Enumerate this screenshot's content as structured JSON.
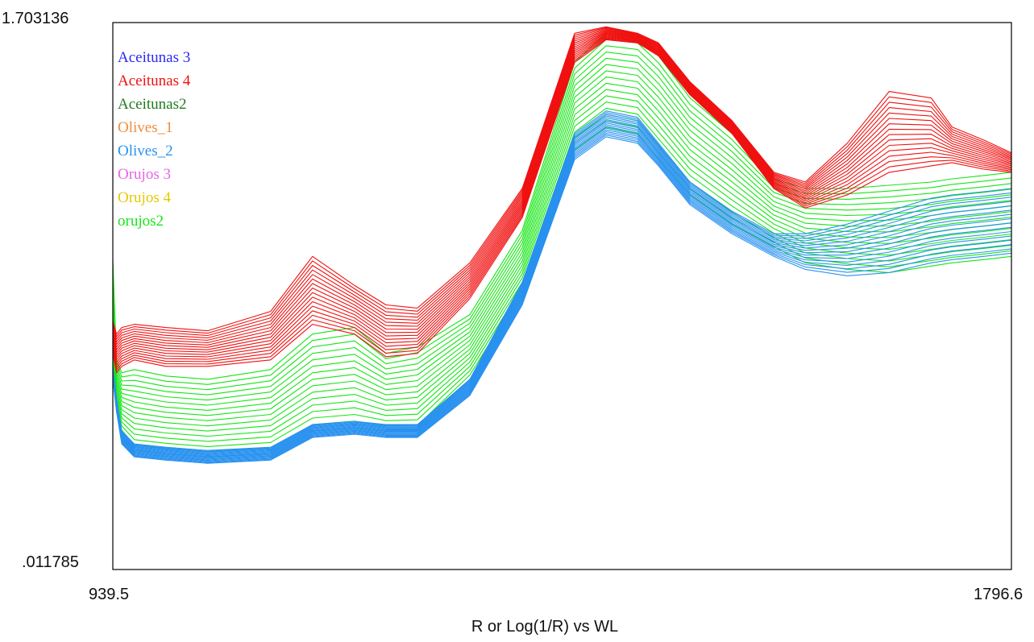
{
  "chart_data": {
    "type": "line",
    "title": "",
    "xlabel": "R or Log(1/R) vs WL",
    "ylabel": "",
    "xlim": [
      939.5,
      1796.6
    ],
    "ylim": [
      0.011785,
      1.703136
    ],
    "x_tick_labels": [
      "939.5",
      "1796.6"
    ],
    "y_tick_labels": [
      "1.703136",
      ".011785"
    ],
    "grid": false,
    "legend_position": "top-left",
    "legend": [
      {
        "name": "Aceitunas 3",
        "color": "#2a2af0"
      },
      {
        "name": "Aceitunas 4",
        "color": "#f01010"
      },
      {
        "name": "Aceitunas2",
        "color": "#1f7a1f"
      },
      {
        "name": "Olives_1",
        "color": "#f08c3c"
      },
      {
        "name": "Olives_2",
        "color": "#2891f0"
      },
      {
        "name": "Orujos 3",
        "color": "#e664e6"
      },
      {
        "name": "Orujos 4",
        "color": "#e6c800"
      },
      {
        "name": "orujos2",
        "color": "#14e614"
      }
    ],
    "series": [
      {
        "name": "orujos2",
        "color": "#14e614",
        "x": [
          939.5,
          943,
          948,
          960,
          990,
          1030,
          1090,
          1130,
          1170,
          1200,
          1230,
          1280,
          1330,
          1380,
          1410,
          1440,
          1460,
          1490,
          1530,
          1570,
          1600,
          1640,
          1680,
          1720,
          1740,
          1770,
          1796.6
        ],
        "lower": [
          0.64,
          0.5,
          0.43,
          0.38,
          0.37,
          0.36,
          0.37,
          0.44,
          0.45,
          0.44,
          0.44,
          0.6,
          0.86,
          1.31,
          1.38,
          1.36,
          1.28,
          1.17,
          1.08,
          1.01,
          0.96,
          0.94,
          0.93,
          0.95,
          0.96,
          0.97,
          0.98
        ],
        "upper": [
          0.97,
          0.66,
          0.62,
          0.63,
          0.61,
          0.6,
          0.63,
          0.74,
          0.76,
          0.68,
          0.7,
          0.8,
          1.06,
          1.58,
          1.67,
          1.66,
          1.6,
          1.47,
          1.36,
          1.22,
          1.19,
          1.19,
          1.2,
          1.21,
          1.22,
          1.23,
          1.24
        ]
      },
      {
        "name": "Aceitunas 4",
        "color": "#f01010",
        "x": [
          939.5,
          943,
          948,
          960,
          990,
          1030,
          1090,
          1130,
          1170,
          1200,
          1230,
          1280,
          1330,
          1380,
          1410,
          1440,
          1460,
          1490,
          1530,
          1570,
          1600,
          1640,
          1680,
          1720,
          1740,
          1770,
          1796.6
        ],
        "lower": [
          0.68,
          0.62,
          0.64,
          0.66,
          0.64,
          0.64,
          0.66,
          0.77,
          0.74,
          0.67,
          0.68,
          0.85,
          1.1,
          1.58,
          1.65,
          1.64,
          1.6,
          1.48,
          1.36,
          1.19,
          1.13,
          1.17,
          1.24,
          1.26,
          1.27,
          1.25,
          1.24
        ],
        "upper": [
          0.78,
          0.74,
          0.76,
          0.77,
          0.76,
          0.75,
          0.81,
          0.98,
          0.89,
          0.83,
          0.82,
          0.96,
          1.19,
          1.67,
          1.69,
          1.67,
          1.64,
          1.52,
          1.4,
          1.24,
          1.21,
          1.33,
          1.49,
          1.47,
          1.38,
          1.34,
          1.3
        ]
      },
      {
        "name": "Olives_2",
        "color": "#2891f0",
        "x": [
          939.5,
          943,
          948,
          960,
          990,
          1030,
          1090,
          1130,
          1170,
          1200,
          1230,
          1280,
          1330,
          1380,
          1410,
          1440,
          1460,
          1490,
          1530,
          1570,
          1600,
          1640,
          1680,
          1720,
          1740,
          1770,
          1796.6
        ],
        "lower": [
          0.6,
          0.5,
          0.4,
          0.36,
          0.35,
          0.34,
          0.35,
          0.42,
          0.43,
          0.42,
          0.42,
          0.55,
          0.83,
          1.28,
          1.35,
          1.33,
          1.26,
          1.14,
          1.05,
          0.98,
          0.94,
          0.92,
          0.93,
          0.96,
          0.97,
          0.98,
          0.99
        ],
        "upper": [
          0.64,
          0.54,
          0.44,
          0.4,
          0.39,
          0.38,
          0.39,
          0.46,
          0.47,
          0.46,
          0.46,
          0.6,
          0.9,
          1.36,
          1.43,
          1.41,
          1.33,
          1.21,
          1.12,
          1.05,
          1.05,
          1.08,
          1.12,
          1.16,
          1.17,
          1.18,
          1.19
        ]
      }
    ]
  }
}
